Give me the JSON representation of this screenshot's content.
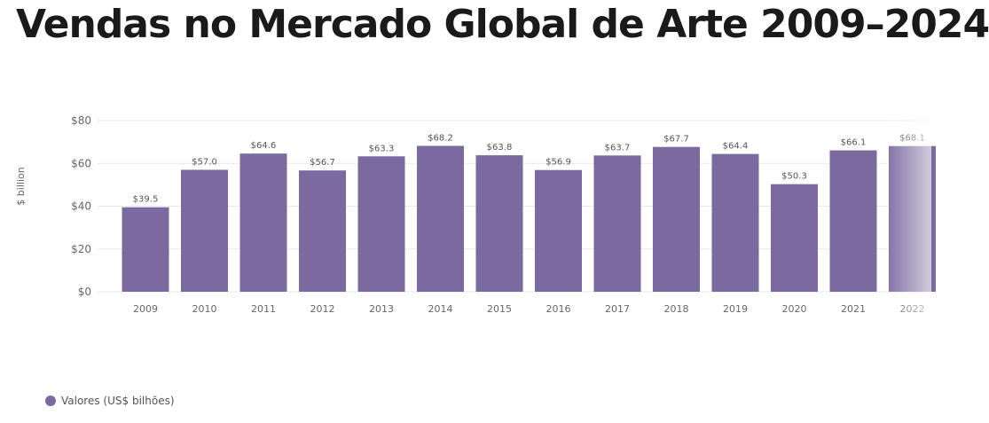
{
  "header": {
    "title": "Vendas no Mercado Global de Arte 2009–2024"
  },
  "colors": {
    "bar": "#7b6aa0",
    "grid": "#e8e8e8",
    "axis_text": "#666666",
    "label_text": "#555555"
  },
  "legend": {
    "label": "Valores (US$ bilhões)"
  },
  "chart_data": {
    "type": "bar",
    "title": "Vendas no Mercado Global de Arte 2009–2024",
    "xlabel": "",
    "ylabel": "$ billion",
    "categories": [
      "2009",
      "2010",
      "2011",
      "2012",
      "2013",
      "2014",
      "2015",
      "2016",
      "2017",
      "2018",
      "2019",
      "2020",
      "2021",
      "2022"
    ],
    "series": [
      {
        "name": "Valores (US$ bilhões)",
        "values": [
          39.5,
          57.0,
          64.6,
          56.7,
          63.3,
          68.2,
          63.8,
          56.9,
          63.7,
          67.7,
          64.4,
          50.3,
          66.1,
          68.1
        ],
        "labels": [
          "$39.5",
          "$57.0",
          "$64.6",
          "$56.7",
          "$63.3",
          "$68.2",
          "$63.8",
          "$56.9",
          "$63.7",
          "$67.7",
          "$64.4",
          "$50.3",
          "$66.1",
          "$68.1"
        ]
      }
    ],
    "ylim": [
      0,
      80
    ],
    "yticks": [
      0,
      20,
      40,
      60,
      80
    ],
    "ytick_labels": [
      "$0",
      "$20",
      "$40",
      "$60",
      "$80"
    ],
    "grid": true,
    "legend_position": "bottom-left"
  }
}
